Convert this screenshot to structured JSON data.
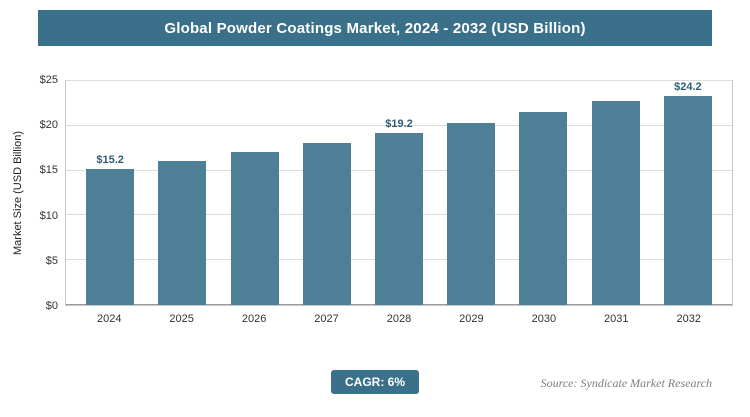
{
  "title": "Global Powder Coatings Market, 2024 - 2032 (USD Billion)",
  "footer": {
    "cagr_label": "CAGR: 6%",
    "source": "Source: Syndicate Market Research"
  },
  "colors": {
    "title_bg": "#3a7089",
    "bar": "#4d7f96",
    "badge_bg": "#3a7089",
    "value_label": "#2f5d77"
  },
  "chart_data": {
    "type": "bar",
    "categories": [
      "2024",
      "2025",
      "2026",
      "2027",
      "2028",
      "2029",
      "2030",
      "2031",
      "2032"
    ],
    "values": [
      15.2,
      16.1,
      17.1,
      18.1,
      19.2,
      20.3,
      21.5,
      22.8,
      24.2
    ],
    "data_labels": [
      "$15.2",
      null,
      null,
      null,
      "$19.2",
      null,
      null,
      null,
      "$24.2"
    ],
    "title": "Global Powder Coatings Market, 2024 - 2032 (USD Billion)",
    "xlabel": "",
    "ylabel": "Market Size (USD Billion)",
    "yticks": [
      "$0",
      "$5",
      "$10",
      "$15",
      "$20",
      "$25"
    ],
    "ylim": [
      0,
      25
    ],
    "grid": true,
    "legend": false
  }
}
